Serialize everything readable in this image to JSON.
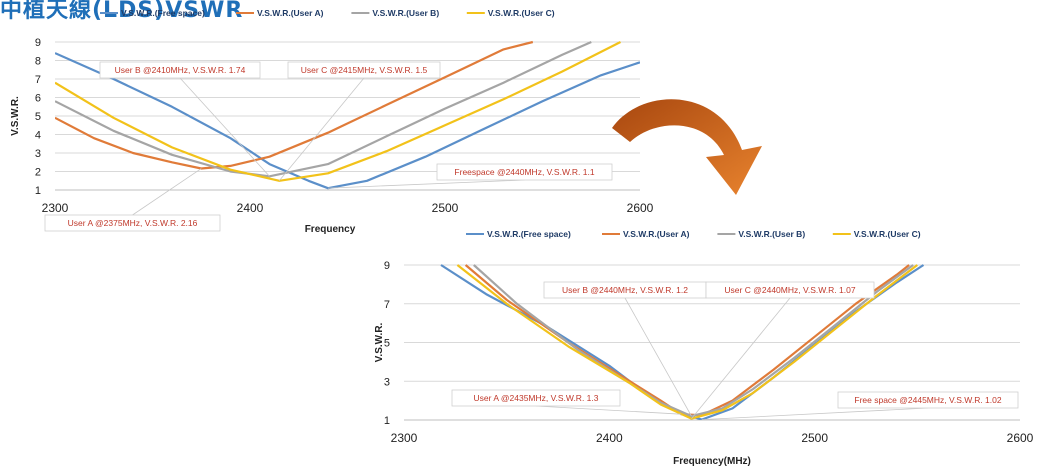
{
  "page": {
    "header_fragment": "中植天線(LDS)VSWR"
  },
  "colors": {
    "free_space": "#5b8fc9",
    "user_a": "#e07b39",
    "user_b": "#a5a5a5",
    "user_c": "#f2c21a",
    "annotation_text": "#c0392b",
    "arrow": "#c55a11"
  },
  "chart_data": [
    {
      "type": "line",
      "legend": [
        "V.S.W.R.(Free space)",
        "V.S.W.R.(User A)",
        "V.S.W.R.(User B)",
        "V.S.W.R.(User C)"
      ],
      "legend_position": "top",
      "xlabel": "Frequency",
      "ylabel": "V.S.W.R.",
      "xlim": [
        2300,
        2600
      ],
      "ylim": [
        1,
        9
      ],
      "xticks": [
        "2300",
        "2400",
        "2500",
        "2600"
      ],
      "yticks": [
        "1",
        "2",
        "3",
        "4",
        "5",
        "6",
        "7",
        "8",
        "9"
      ],
      "grid": true,
      "series": [
        {
          "name": "V.S.W.R.(Free space)",
          "x": [
            2300,
            2330,
            2360,
            2390,
            2410,
            2430,
            2440,
            2460,
            2490,
            2520,
            2550,
            2580,
            2600
          ],
          "values": [
            8.4,
            7.0,
            5.5,
            3.8,
            2.4,
            1.5,
            1.1,
            1.5,
            2.8,
            4.3,
            5.8,
            7.2,
            7.9
          ]
        },
        {
          "name": "V.S.W.R.(User A)",
          "x": [
            2300,
            2320,
            2340,
            2360,
            2375,
            2390,
            2410,
            2440,
            2470,
            2500,
            2530,
            2545
          ],
          "values": [
            4.9,
            3.8,
            3.0,
            2.5,
            2.16,
            2.3,
            2.8,
            4.1,
            5.6,
            7.1,
            8.6,
            9.0
          ]
        },
        {
          "name": "V.S.W.R.(User B)",
          "x": [
            2300,
            2330,
            2360,
            2390,
            2410,
            2440,
            2470,
            2500,
            2530,
            2560,
            2575
          ],
          "values": [
            5.8,
            4.2,
            2.9,
            2.0,
            1.74,
            2.4,
            3.9,
            5.4,
            6.8,
            8.3,
            9.0
          ]
        },
        {
          "name": "V.S.W.R.(User C)",
          "x": [
            2300,
            2330,
            2360,
            2390,
            2415,
            2440,
            2470,
            2500,
            2530,
            2560,
            2590
          ],
          "values": [
            6.8,
            4.9,
            3.3,
            2.1,
            1.5,
            1.9,
            3.1,
            4.5,
            5.9,
            7.4,
            9.0
          ]
        }
      ],
      "annotations": [
        {
          "text": "User B @2410MHz, V.S.W.R. 1.74",
          "x": 2410,
          "y": 1.74
        },
        {
          "text": "User C @2415MHz, V.S.W.R. 1.5",
          "x": 2415,
          "y": 1.5
        },
        {
          "text": "Freespace @2440MHz, V.S.W.R. 1.1",
          "x": 2440,
          "y": 1.1
        },
        {
          "text": "User A @2375MHz, V.S.W.R. 2.16",
          "x": 2375,
          "y": 2.16
        }
      ]
    },
    {
      "type": "line",
      "legend": [
        "V.S.W.R.(Free space)",
        "V.S.W.R.(User A)",
        "V.S.W.R.(User B)",
        "V.S.W.R.(User C)"
      ],
      "legend_position": "top",
      "xlabel": "Frequency(MHz)",
      "ylabel": "V.S.W.R.",
      "xlim": [
        2300,
        2600
      ],
      "ylim": [
        1,
        9
      ],
      "xticks": [
        "2300",
        "2400",
        "2500",
        "2600"
      ],
      "yticks": [
        "1",
        "3",
        "5",
        "7",
        "9"
      ],
      "grid": true,
      "series": [
        {
          "name": "V.S.W.R.(Free space)",
          "x": [
            2318,
            2340,
            2370,
            2400,
            2420,
            2435,
            2445,
            2460,
            2480,
            2500,
            2520,
            2540,
            2553
          ],
          "values": [
            9.0,
            7.5,
            5.8,
            3.8,
            2.2,
            1.35,
            1.02,
            1.6,
            3.2,
            4.9,
            6.6,
            8.1,
            9.0
          ]
        },
        {
          "name": "V.S.W.R.(User A)",
          "x": [
            2330,
            2350,
            2380,
            2410,
            2425,
            2435,
            2445,
            2460,
            2480,
            2500,
            2520,
            2540,
            2546
          ],
          "values": [
            9.0,
            7.2,
            5.0,
            3.0,
            2.0,
            1.3,
            1.25,
            2.0,
            3.6,
            5.3,
            7.0,
            8.5,
            9.0
          ]
        },
        {
          "name": "V.S.W.R.(User B)",
          "x": [
            2334,
            2355,
            2385,
            2410,
            2425,
            2440,
            2455,
            2470,
            2490,
            2510,
            2530,
            2548
          ],
          "values": [
            9.0,
            7.0,
            4.6,
            2.9,
            1.9,
            1.2,
            1.6,
            2.6,
            4.2,
            5.9,
            7.6,
            9.0
          ]
        },
        {
          "name": "V.S.W.R.(User C)",
          "x": [
            2326,
            2350,
            2380,
            2410,
            2425,
            2440,
            2455,
            2470,
            2490,
            2510,
            2530,
            2550
          ],
          "values": [
            9.0,
            7.0,
            4.8,
            2.9,
            1.8,
            1.07,
            1.5,
            2.4,
            4.0,
            5.7,
            7.4,
            9.0
          ]
        }
      ],
      "annotations": [
        {
          "text": "User B @2440MHz, V.S.W.R. 1.2",
          "x": 2440,
          "y": 1.2
        },
        {
          "text": "User C @2440MHz, V.S.W.R. 1.07",
          "x": 2440,
          "y": 1.07
        },
        {
          "text": "User A @2435MHz, V.S.W.R. 1.3",
          "x": 2435,
          "y": 1.3
        },
        {
          "text": "Free space @2445MHz, V.S.W.R. 1.02",
          "x": 2445,
          "y": 1.02
        }
      ]
    }
  ]
}
